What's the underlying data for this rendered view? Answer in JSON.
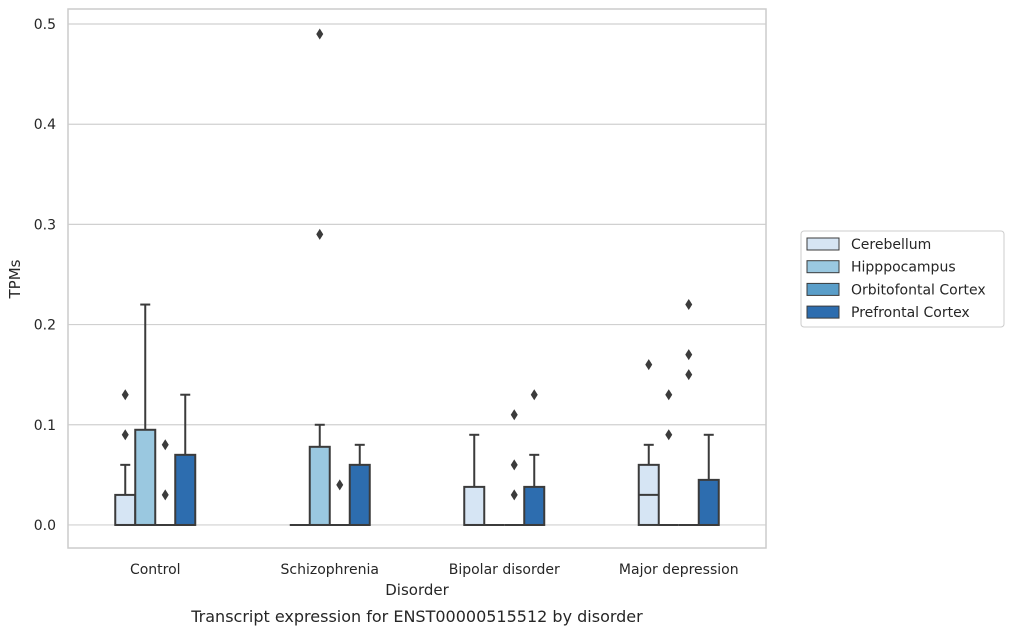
{
  "chart_data": {
    "type": "box",
    "caption": "Transcript expression for ENST00000515512 by disorder",
    "xlabel": "Disorder",
    "ylabel": "TPMs",
    "ylim": [
      -0.023,
      0.515
    ],
    "yticks": [
      0.0,
      0.1,
      0.2,
      0.3,
      0.4,
      0.5
    ],
    "ytick_labels": [
      "0.0",
      "0.1",
      "0.2",
      "0.3",
      "0.4",
      "0.5"
    ],
    "grid": "horizontal",
    "legend_position": "right",
    "categories": [
      "Control",
      "Schizophrenia",
      "Bipolar disorder",
      "Major depression"
    ],
    "series": [
      {
        "name": "Cerebellum",
        "color": "#d6e5f4",
        "boxes": [
          {
            "q1": 0.0,
            "median": 0.0,
            "q3": 0.03,
            "whisker_low": 0.0,
            "whisker_high": 0.06,
            "outliers": [
              0.09,
              0.13
            ]
          },
          {
            "q1": 0.0,
            "median": 0.0,
            "q3": 0.0,
            "whisker_low": 0.0,
            "whisker_high": 0.0,
            "outliers": []
          },
          {
            "q1": 0.0,
            "median": 0.0,
            "q3": 0.038,
            "whisker_low": 0.0,
            "whisker_high": 0.09,
            "outliers": []
          },
          {
            "q1": 0.0,
            "median": 0.03,
            "q3": 0.06,
            "whisker_low": 0.0,
            "whisker_high": 0.08,
            "outliers": [
              0.16
            ]
          }
        ]
      },
      {
        "name": "Hipppocampus",
        "color": "#9ac8e0",
        "boxes": [
          {
            "q1": 0.0,
            "median": 0.0,
            "q3": 0.095,
            "whisker_low": 0.0,
            "whisker_high": 0.22,
            "outliers": []
          },
          {
            "q1": 0.0,
            "median": 0.0,
            "q3": 0.078,
            "whisker_low": 0.0,
            "whisker_high": 0.1,
            "outliers": [
              0.29,
              0.49
            ]
          },
          {
            "q1": 0.0,
            "median": 0.0,
            "q3": 0.0,
            "whisker_low": 0.0,
            "whisker_high": 0.0,
            "outliers": []
          },
          {
            "q1": 0.0,
            "median": 0.0,
            "q3": 0.0,
            "whisker_low": 0.0,
            "whisker_high": 0.0,
            "outliers": [
              0.09,
              0.13
            ]
          }
        ]
      },
      {
        "name": "Orbitofontal Cortex",
        "color": "#5a9ec9",
        "boxes": [
          {
            "q1": 0.0,
            "median": 0.0,
            "q3": 0.0,
            "whisker_low": 0.0,
            "whisker_high": 0.0,
            "outliers": [
              0.03,
              0.08
            ]
          },
          {
            "q1": 0.0,
            "median": 0.0,
            "q3": 0.0,
            "whisker_low": 0.0,
            "whisker_high": 0.0,
            "outliers": [
              0.04
            ]
          },
          {
            "q1": 0.0,
            "median": 0.0,
            "q3": 0.0,
            "whisker_low": 0.0,
            "whisker_high": 0.0,
            "outliers": [
              0.03,
              0.06,
              0.11
            ]
          },
          {
            "q1": 0.0,
            "median": 0.0,
            "q3": 0.0,
            "whisker_low": 0.0,
            "whisker_high": 0.0,
            "outliers": [
              0.15,
              0.17,
              0.22
            ]
          }
        ]
      },
      {
        "name": "Prefrontal Cortex",
        "color": "#2d6daf",
        "boxes": [
          {
            "q1": 0.0,
            "median": 0.0,
            "q3": 0.07,
            "whisker_low": 0.0,
            "whisker_high": 0.13,
            "outliers": []
          },
          {
            "q1": 0.0,
            "median": 0.0,
            "q3": 0.06,
            "whisker_low": 0.0,
            "whisker_high": 0.08,
            "outliers": []
          },
          {
            "q1": 0.0,
            "median": 0.0,
            "q3": 0.038,
            "whisker_low": 0.0,
            "whisker_high": 0.07,
            "outliers": [
              0.13
            ]
          },
          {
            "q1": 0.0,
            "median": 0.0,
            "q3": 0.045,
            "whisker_low": 0.0,
            "whisker_high": 0.09,
            "outliers": []
          }
        ]
      }
    ]
  }
}
